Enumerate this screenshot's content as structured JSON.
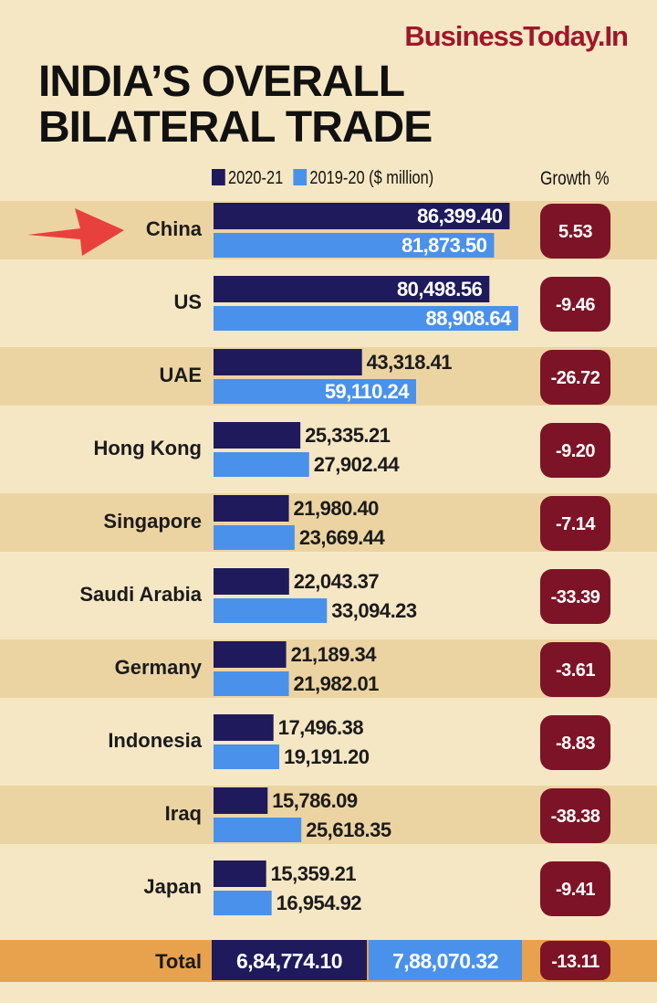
{
  "brand": "BusinessToday.In",
  "title_line1": "INDIA’S OVERALL",
  "title_line2": "BILATERAL TRADE",
  "legend": {
    "series1": "2020-21",
    "series2": "2019-20",
    "units": "($ million)"
  },
  "growth_header": "Growth %",
  "colors": {
    "background": "#f6e7c4",
    "band": "#ecd4a2",
    "total_band": "#e8a14d",
    "series_2020_21": "#1e1a5c",
    "series_2019_20": "#4a91eb",
    "growth_badge": "#7d1326",
    "brand": "#a0162a",
    "arrow": "#e8403c"
  },
  "highlight": {
    "category": "China",
    "icon": "red-arrow-icon"
  },
  "chart_data": {
    "type": "bar",
    "orientation": "horizontal",
    "categories": [
      "China",
      "US",
      "UAE",
      "Hong Kong",
      "Singapore",
      "Saudi Arabia",
      "Germany",
      "Indonesia",
      "Iraq",
      "Japan"
    ],
    "series": [
      {
        "name": "2020-21",
        "values": [
          86399.4,
          80498.56,
          43318.41,
          25335.21,
          21980.4,
          22043.37,
          21189.34,
          17496.38,
          15786.09,
          15359.21
        ],
        "labels": [
          "86,399.40",
          "80,498.56",
          "43,318.41",
          "25,335.21",
          "21,980.40",
          "22,043.37",
          "21,189.34",
          "17,496.38",
          "15,786.09",
          "15,359.21"
        ]
      },
      {
        "name": "2019-20",
        "values": [
          81873.5,
          88908.64,
          59110.24,
          27902.44,
          23669.44,
          33094.23,
          21982.01,
          19191.2,
          25618.35,
          16954.92
        ],
        "labels": [
          "81,873.50",
          "88,908.64",
          "59,110.24",
          "27,902.44",
          "23,669.44",
          "33,094.23",
          "21,982.01",
          "19,191.20",
          "25,618.35",
          "16,954.92"
        ]
      }
    ],
    "growth": {
      "values": [
        5.53,
        -9.46,
        -26.72,
        -9.2,
        -7.14,
        -33.39,
        -3.61,
        -8.83,
        -38.38,
        -9.41
      ],
      "labels": [
        "5.53",
        "-9.46",
        "-26.72",
        "-9.20",
        "-7.14",
        "-33.39",
        "-3.61",
        "-8.83",
        "-38.38",
        "-9.41"
      ]
    },
    "total": {
      "label": "Total",
      "value_2020_21": "6,84,774.10",
      "value_2019_20": "7,88,070.32",
      "growth": "-13.11"
    },
    "xlim": [
      0,
      90000
    ]
  }
}
